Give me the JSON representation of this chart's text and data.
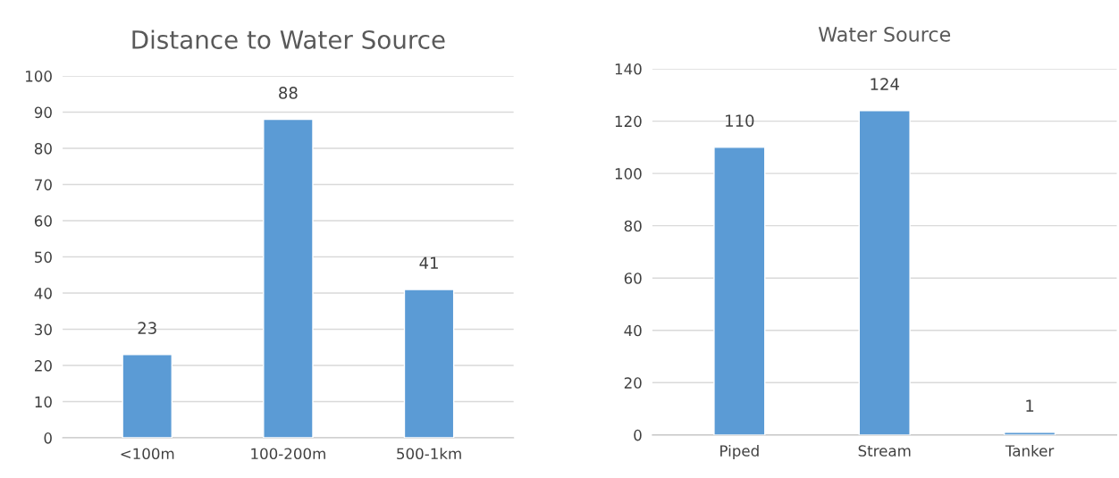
{
  "chart_data": [
    {
      "type": "bar",
      "title": "Distance to Water Source",
      "categories": [
        "<100m",
        "100-200m",
        "500-1km"
      ],
      "values": [
        23,
        88,
        41
      ],
      "color": "#5b9bd5",
      "ylim": [
        0,
        100
      ],
      "yticks": [
        0,
        10,
        20,
        30,
        40,
        50,
        60,
        70,
        80,
        90,
        100
      ],
      "grid": "y",
      "data_labels": true
    },
    {
      "type": "bar",
      "title": "Water Source",
      "categories": [
        "Piped",
        "Stream",
        "Tanker"
      ],
      "values": [
        110,
        124,
        1
      ],
      "color": "#5b9bd5",
      "ylim": [
        0,
        140
      ],
      "yticks": [
        0,
        20,
        40,
        60,
        80,
        100,
        120,
        140
      ],
      "grid": "y",
      "data_labels": true
    }
  ]
}
